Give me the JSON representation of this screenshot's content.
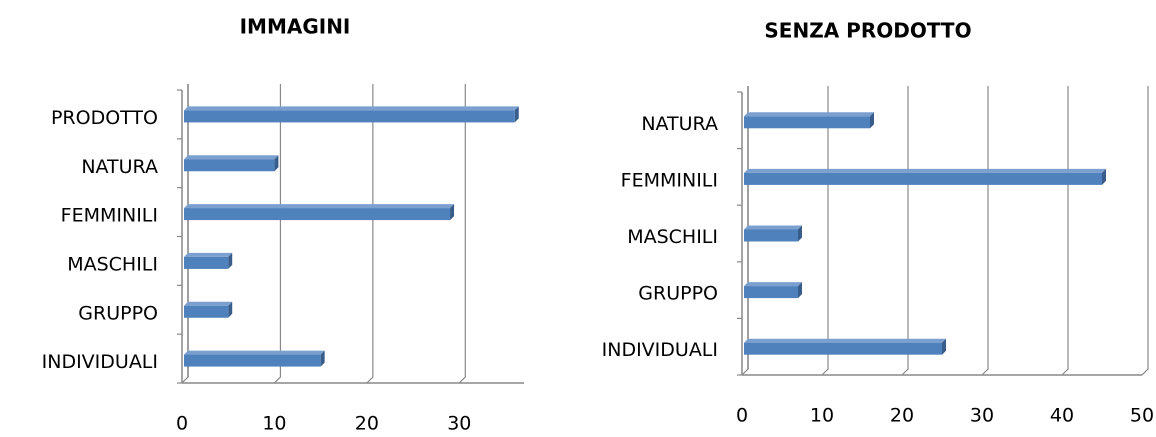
{
  "chart_data": [
    {
      "type": "bar",
      "orientation": "horizontal",
      "title": "IMMAGINI",
      "categories": [
        "INDIVIDUALI",
        "GRUPPO",
        "MASCHILI",
        "FEMMINILI",
        "NATURA",
        "PRODOTTO"
      ],
      "values": [
        15,
        5,
        5,
        29,
        10,
        36
      ],
      "color": "#4f81bd",
      "xlim": [
        0,
        37
      ],
      "xticks": [
        0,
        10,
        20,
        30
      ],
      "grid": true
    },
    {
      "type": "bar",
      "orientation": "horizontal",
      "title": "SENZA PRODOTTO",
      "categories": [
        "INDIVIDUALI",
        "GRUPPO",
        "MASCHILI",
        "FEMMINILI",
        "NATURA"
      ],
      "values": [
        25,
        7,
        7,
        45,
        16
      ],
      "color": "#4f81bd",
      "xlim": [
        0,
        50
      ],
      "xticks": [
        0,
        10,
        20,
        30,
        40,
        50
      ],
      "grid": true
    }
  ]
}
